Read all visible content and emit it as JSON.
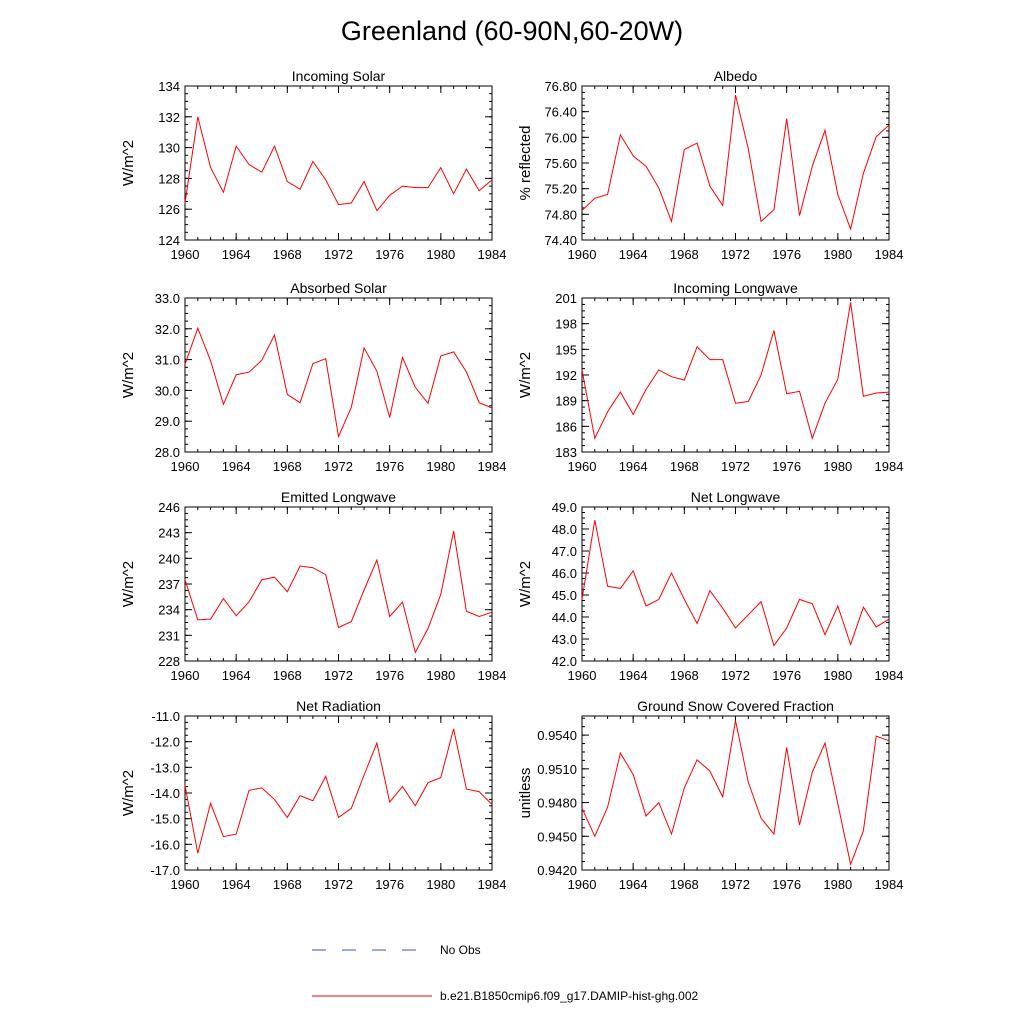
{
  "figure": {
    "title": "Greenland (60-90N,60-20W)",
    "legend": [
      {
        "label": "No Obs",
        "color": "#3b4fd8",
        "style": "dashed"
      },
      {
        "label": "b.e21.B1850cmip6.f09_g17.DAMIP-hist-ghg.002",
        "color": "#ff0000",
        "style": "solid"
      }
    ]
  },
  "chart_data": [
    {
      "type": "line",
      "title": "Incoming Solar",
      "ylabel": "W/m^2",
      "xlim": [
        1960,
        1984
      ],
      "ylim": [
        124,
        134
      ],
      "xticks": [
        "1960",
        "1964",
        "1968",
        "1972",
        "1976",
        "1980",
        "1984"
      ],
      "yticks": [
        "124",
        "126",
        "128",
        "130",
        "132",
        "134"
      ],
      "x": [
        1960,
        1961,
        1962,
        1963,
        1964,
        1965,
        1966,
        1967,
        1968,
        1969,
        1970,
        1971,
        1972,
        1973,
        1974,
        1975,
        1976,
        1977,
        1978,
        1979,
        1980,
        1981,
        1982,
        1983,
        1984
      ],
      "series": [
        {
          "color": "#ff0000",
          "values": [
            126.4,
            132.0,
            128.7,
            127.1,
            130.1,
            128.9,
            128.4,
            130.1,
            127.8,
            127.3,
            129.1,
            127.9,
            126.3,
            126.4,
            127.8,
            125.9,
            126.9,
            127.5,
            127.4,
            127.4,
            128.7,
            127.0,
            128.6,
            127.2,
            127.9
          ]
        }
      ]
    },
    {
      "type": "line",
      "title": "Albedo",
      "ylabel": "% reflected",
      "xlim": [
        1960,
        1984
      ],
      "ylim": [
        74.4,
        76.8
      ],
      "xticks": [
        "1960",
        "1964",
        "1968",
        "1972",
        "1976",
        "1980",
        "1984"
      ],
      "yticks": [
        "74.40",
        "74.80",
        "75.20",
        "75.60",
        "76.00",
        "76.40",
        "76.80"
      ],
      "x": [
        1960,
        1961,
        1962,
        1963,
        1964,
        1965,
        1966,
        1967,
        1968,
        1969,
        1970,
        1971,
        1972,
        1973,
        1974,
        1975,
        1976,
        1977,
        1978,
        1979,
        1980,
        1981,
        1982,
        1983,
        1984
      ],
      "series": [
        {
          "color": "#ff0000",
          "values": [
            74.86,
            75.05,
            75.11,
            76.04,
            75.71,
            75.55,
            75.21,
            74.69,
            75.81,
            75.91,
            75.24,
            74.94,
            76.66,
            75.82,
            74.69,
            74.87,
            76.29,
            74.78,
            75.55,
            76.11,
            75.11,
            74.57,
            75.44,
            76.01,
            76.19
          ]
        }
      ]
    },
    {
      "type": "line",
      "title": "Absorbed Solar",
      "ylabel": "W/m^2",
      "xlim": [
        1960,
        1984
      ],
      "ylim": [
        28.0,
        33.0
      ],
      "xticks": [
        "1960",
        "1964",
        "1968",
        "1972",
        "1976",
        "1980",
        "1984"
      ],
      "yticks": [
        "28.0",
        "29.0",
        "30.0",
        "31.0",
        "32.0",
        "33.0"
      ],
      "x": [
        1960,
        1961,
        1962,
        1963,
        1964,
        1965,
        1966,
        1967,
        1968,
        1969,
        1970,
        1971,
        1972,
        1973,
        1974,
        1975,
        1976,
        1977,
        1978,
        1979,
        1980,
        1981,
        1982,
        1983,
        1984
      ],
      "series": [
        {
          "color": "#ff0000",
          "values": [
            30.85,
            32.02,
            30.96,
            29.55,
            30.51,
            30.59,
            30.98,
            31.8,
            29.87,
            29.6,
            30.87,
            31.03,
            28.5,
            29.45,
            31.38,
            30.62,
            29.12,
            31.07,
            30.1,
            29.58,
            31.12,
            31.25,
            30.6,
            29.6,
            29.43
          ]
        }
      ]
    },
    {
      "type": "line",
      "title": "Incoming Longwave",
      "ylabel": "W/m^2",
      "xlim": [
        1960,
        1984
      ],
      "ylim": [
        183,
        201
      ],
      "xticks": [
        "1960",
        "1964",
        "1968",
        "1972",
        "1976",
        "1980",
        "1984"
      ],
      "yticks": [
        "183",
        "186",
        "189",
        "192",
        "195",
        "198",
        "201"
      ],
      "x": [
        1960,
        1961,
        1962,
        1963,
        1964,
        1965,
        1966,
        1967,
        1968,
        1969,
        1970,
        1971,
        1972,
        1973,
        1974,
        1975,
        1976,
        1977,
        1978,
        1979,
        1980,
        1981,
        1982,
        1983,
        1984
      ],
      "series": [
        {
          "color": "#ff0000",
          "values": [
            192.6,
            184.6,
            187.7,
            190.0,
            187.4,
            190.3,
            192.6,
            191.8,
            191.4,
            195.3,
            193.8,
            193.8,
            188.7,
            188.9,
            192.0,
            197.2,
            189.8,
            190.1,
            184.6,
            188.7,
            191.5,
            200.5,
            189.5,
            189.9,
            190.0
          ]
        }
      ]
    },
    {
      "type": "line",
      "title": "Emitted Longwave",
      "ylabel": "W/m^2",
      "xlim": [
        1960,
        1984
      ],
      "ylim": [
        228,
        246
      ],
      "xticks": [
        "1960",
        "1964",
        "1968",
        "1972",
        "1976",
        "1980",
        "1984"
      ],
      "yticks": [
        "228",
        "231",
        "234",
        "237",
        "240",
        "243",
        "246"
      ],
      "x": [
        1960,
        1961,
        1962,
        1963,
        1964,
        1965,
        1966,
        1967,
        1968,
        1969,
        1970,
        1971,
        1972,
        1973,
        1974,
        1975,
        1976,
        1977,
        1978,
        1979,
        1980,
        1981,
        1982,
        1983,
        1984
      ],
      "series": [
        {
          "color": "#ff0000",
          "values": [
            237.5,
            232.8,
            232.9,
            235.3,
            233.3,
            234.9,
            237.5,
            237.8,
            236.1,
            239.1,
            238.9,
            238.1,
            231.9,
            232.6,
            236.3,
            239.8,
            233.2,
            234.9,
            229.0,
            231.8,
            235.8,
            243.2,
            233.8,
            233.2,
            233.7
          ]
        }
      ]
    },
    {
      "type": "line",
      "title": "Net Longwave",
      "ylabel": "W/m^2",
      "xlim": [
        1960,
        1984
      ],
      "ylim": [
        42.0,
        49.0
      ],
      "xticks": [
        "1960",
        "1964",
        "1968",
        "1972",
        "1976",
        "1980",
        "1984"
      ],
      "yticks": [
        "42.0",
        "43.0",
        "44.0",
        "45.0",
        "46.0",
        "47.0",
        "48.0",
        "49.0"
      ],
      "x": [
        1960,
        1961,
        1962,
        1963,
        1964,
        1965,
        1966,
        1967,
        1968,
        1969,
        1970,
        1971,
        1972,
        1973,
        1974,
        1975,
        1976,
        1977,
        1978,
        1979,
        1980,
        1981,
        1982,
        1983,
        1984
      ],
      "series": [
        {
          "color": "#ff0000",
          "values": [
            44.8,
            48.4,
            45.4,
            45.3,
            46.1,
            44.5,
            44.8,
            46.0,
            44.8,
            43.7,
            45.2,
            44.4,
            43.5,
            44.1,
            44.7,
            42.7,
            43.5,
            44.8,
            44.6,
            43.2,
            44.5,
            42.75,
            44.45,
            43.55,
            43.9
          ]
        }
      ]
    },
    {
      "type": "line",
      "title": "Net Radiation",
      "ylabel": "W/m^2",
      "xlim": [
        1960,
        1984
      ],
      "ylim": [
        -17.0,
        -11.0
      ],
      "xticks": [
        "1960",
        "1964",
        "1968",
        "1972",
        "1976",
        "1980",
        "1984"
      ],
      "yticks": [
        "-17.0",
        "-16.0",
        "-15.0",
        "-14.0",
        "-13.0",
        "-12.0",
        "-11.0"
      ],
      "x": [
        1960,
        1961,
        1962,
        1963,
        1964,
        1965,
        1966,
        1967,
        1968,
        1969,
        1970,
        1971,
        1972,
        1973,
        1974,
        1975,
        1976,
        1977,
        1978,
        1979,
        1980,
        1981,
        1982,
        1983,
        1984
      ],
      "series": [
        {
          "color": "#ff0000",
          "values": [
            -13.7,
            -16.35,
            -14.4,
            -15.7,
            -15.6,
            -13.9,
            -13.8,
            -14.25,
            -14.95,
            -14.1,
            -14.3,
            -13.35,
            -14.95,
            -14.6,
            -13.3,
            -12.05,
            -14.35,
            -13.75,
            -14.5,
            -13.6,
            -13.4,
            -11.5,
            -13.85,
            -13.95,
            -14.45
          ]
        }
      ]
    },
    {
      "type": "line",
      "title": "Ground Snow Covered Fraction",
      "ylabel": "unitless",
      "xlim": [
        1960,
        1984
      ],
      "ylim": [
        0.942,
        0.9557
      ],
      "xticks": [
        "1960",
        "1964",
        "1968",
        "1972",
        "1976",
        "1980",
        "1984"
      ],
      "yticks": [
        "0.9420",
        "0.9450",
        "0.9480",
        "0.9510",
        "0.9540"
      ],
      "x": [
        1960,
        1961,
        1962,
        1963,
        1964,
        1965,
        1966,
        1967,
        1968,
        1969,
        1970,
        1971,
        1972,
        1973,
        1974,
        1975,
        1976,
        1977,
        1978,
        1979,
        1980,
        1981,
        1982,
        1983,
        1984
      ],
      "series": [
        {
          "color": "#ff0000",
          "values": [
            0.9475,
            0.945,
            0.9476,
            0.9524,
            0.9505,
            0.9468,
            0.948,
            0.9452,
            0.9493,
            0.9518,
            0.9508,
            0.9485,
            0.9553,
            0.9498,
            0.9466,
            0.9452,
            0.9529,
            0.946,
            0.9507,
            0.9533,
            0.9479,
            0.9425,
            0.9455,
            0.9539,
            0.9535
          ]
        }
      ]
    }
  ]
}
